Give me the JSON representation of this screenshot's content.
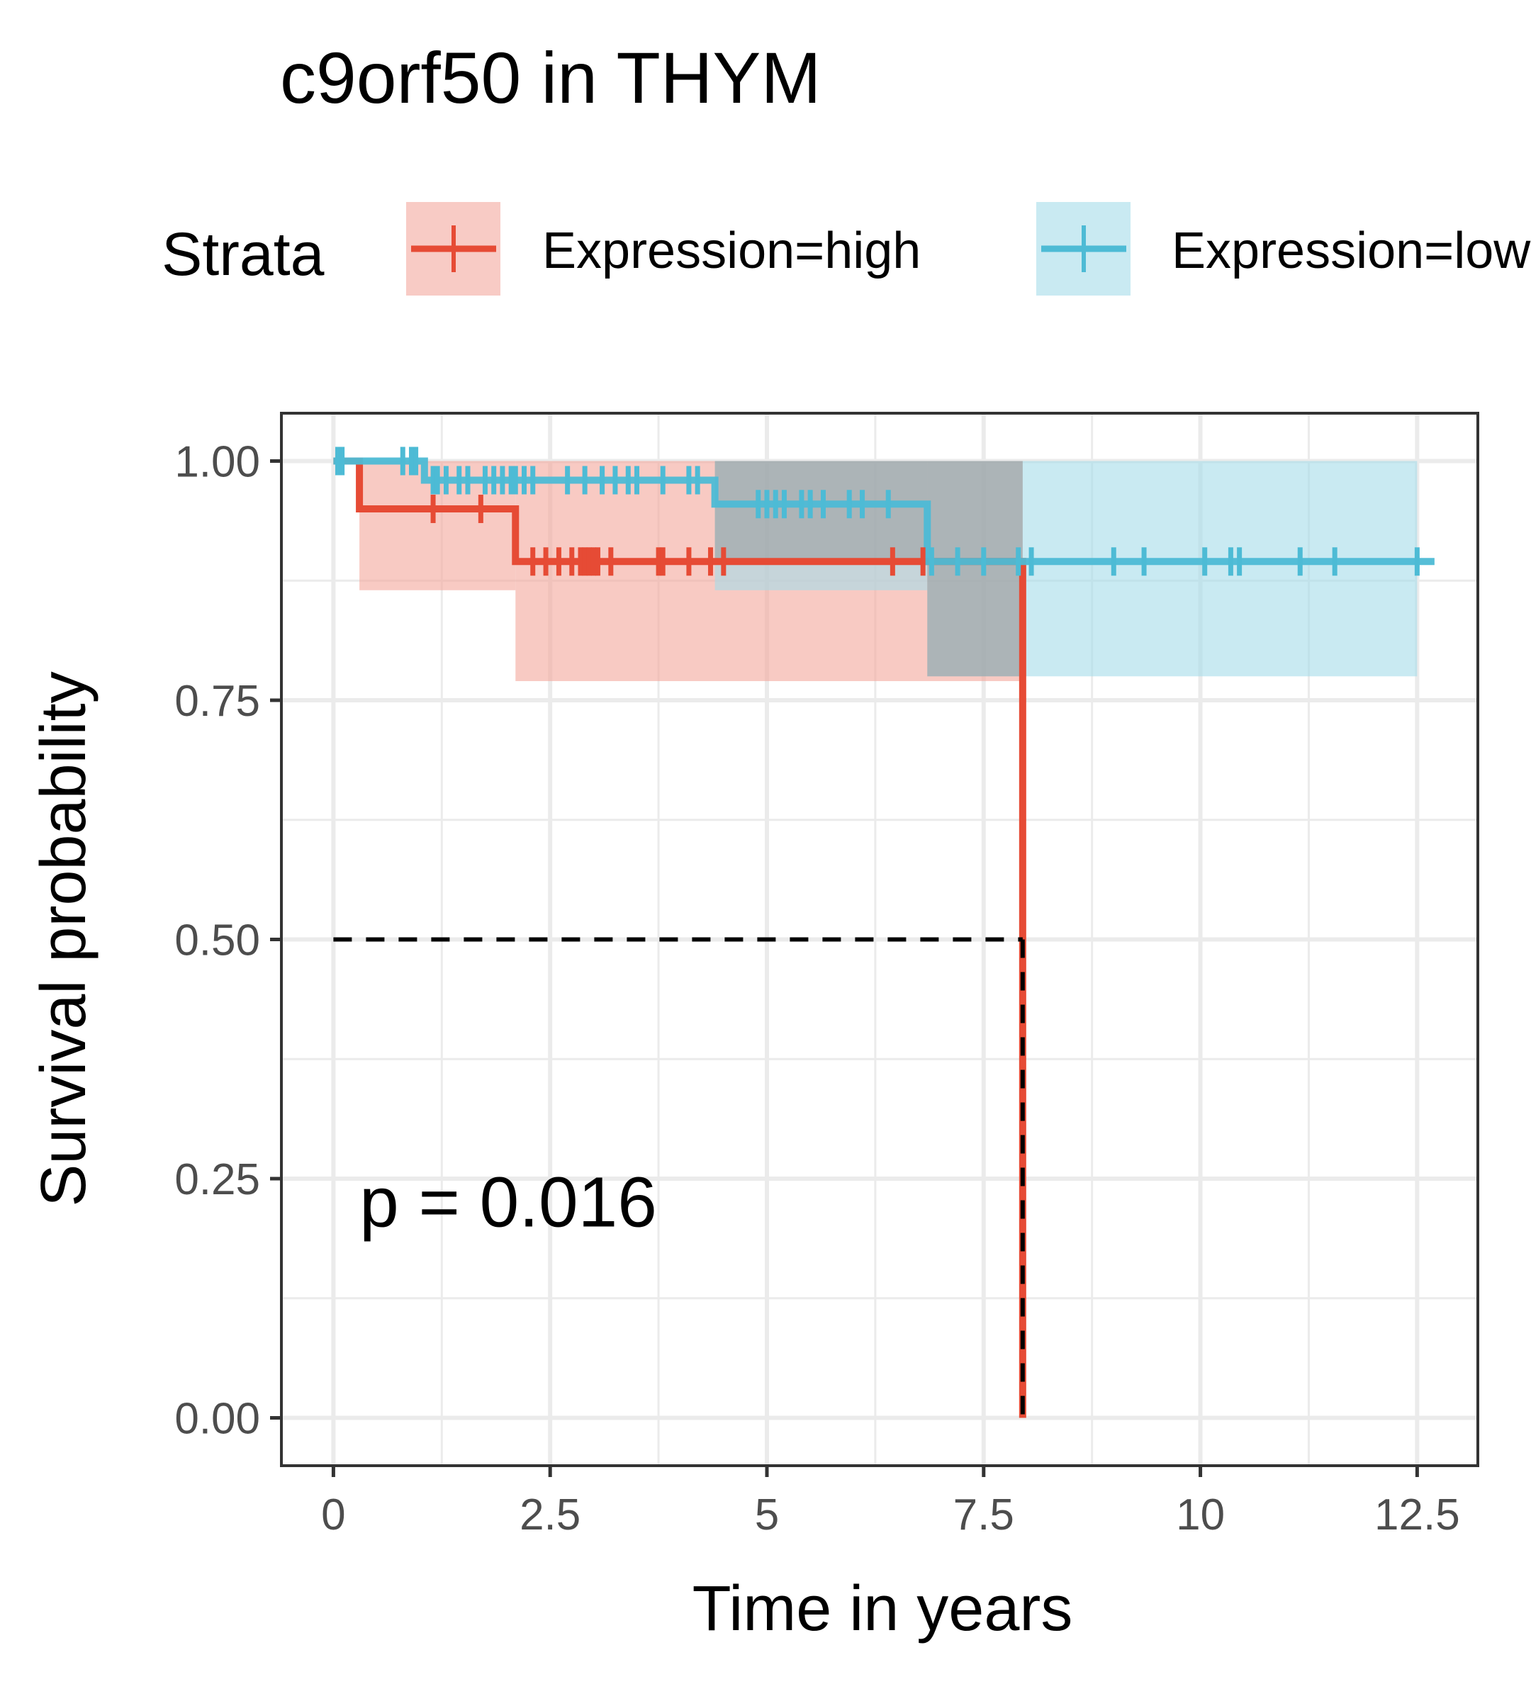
{
  "chart_data": {
    "type": "line",
    "subtype": "kaplan-meier",
    "title": "c9orf50 in THYM",
    "xlabel": "Time in years",
    "ylabel": "Survival probability",
    "xlim": [
      -0.6,
      13.2
    ],
    "ylim": [
      -0.05,
      1.05
    ],
    "x_ticks": [
      0,
      2.5,
      5,
      7.5,
      10,
      12.5
    ],
    "x_tick_labels": [
      "0",
      "2.5",
      "5",
      "7.5",
      "10",
      "12.5"
    ],
    "y_ticks": [
      0,
      0.25,
      0.5,
      0.75,
      1.0
    ],
    "y_tick_labels": [
      "0.00",
      "0.25",
      "0.50",
      "0.75",
      "1.00"
    ],
    "grid": true,
    "legend": {
      "title": "Strata",
      "position": "top",
      "entries": [
        "Expression=high",
        "Expression=low"
      ]
    },
    "annotation": "p = 0.016",
    "median_line": {
      "y": 0.5,
      "x": 7.95
    },
    "series": [
      {
        "name": "Expression=high",
        "color": "#E64B35",
        "fill": "#F4A99E",
        "steps": [
          [
            0,
            1.0
          ],
          [
            0.3,
            0.95
          ],
          [
            2.1,
            0.895
          ],
          [
            7.95,
            0.0
          ]
        ],
        "end_x": 7.95,
        "ci": [
          {
            "x": [
              0.3,
              2.1
            ],
            "lower": 0.865,
            "upper": 1.0
          },
          {
            "x": [
              2.1,
              7.95
            ],
            "lower": 0.77,
            "upper": 1.0
          }
        ],
        "censor": [
          1.15,
          1.7,
          2.3,
          2.45,
          2.6,
          2.75,
          2.85,
          2.9,
          2.95,
          3.0,
          3.05,
          3.2,
          3.75,
          3.8,
          4.1,
          4.35,
          4.5,
          6.45,
          6.8
        ]
      },
      {
        "name": "Expression=low",
        "color": "#4DBBD5",
        "fill": "#A5DCE9",
        "steps": [
          [
            0,
            1.0
          ],
          [
            1.05,
            0.98
          ],
          [
            4.4,
            0.955
          ],
          [
            6.85,
            0.895
          ]
        ],
        "end_x": 12.7,
        "ci": [
          {
            "x": [
              1.05,
              4.4
            ],
            "lower": 1.0,
            "upper": 1.0
          },
          {
            "x": [
              4.4,
              6.85
            ],
            "lower": 0.865,
            "upper": 1.0
          },
          {
            "x": [
              6.85,
              12.5
            ],
            "lower": 0.775,
            "upper": 1.0
          }
        ],
        "censor": [
          0.05,
          0.1,
          0.8,
          0.9,
          0.95,
          1.15,
          1.2,
          1.3,
          1.45,
          1.55,
          1.75,
          1.85,
          1.95,
          2.05,
          2.1,
          2.2,
          2.3,
          2.7,
          2.9,
          3.1,
          3.25,
          3.4,
          3.5,
          3.8,
          4.1,
          4.2,
          4.9,
          5.0,
          5.1,
          5.2,
          5.4,
          5.5,
          5.65,
          5.95,
          6.1,
          6.4,
          6.9,
          7.2,
          7.5,
          7.9,
          8.05,
          9.0,
          9.35,
          10.05,
          10.35,
          10.45,
          11.15,
          11.55,
          12.5
        ]
      }
    ]
  }
}
